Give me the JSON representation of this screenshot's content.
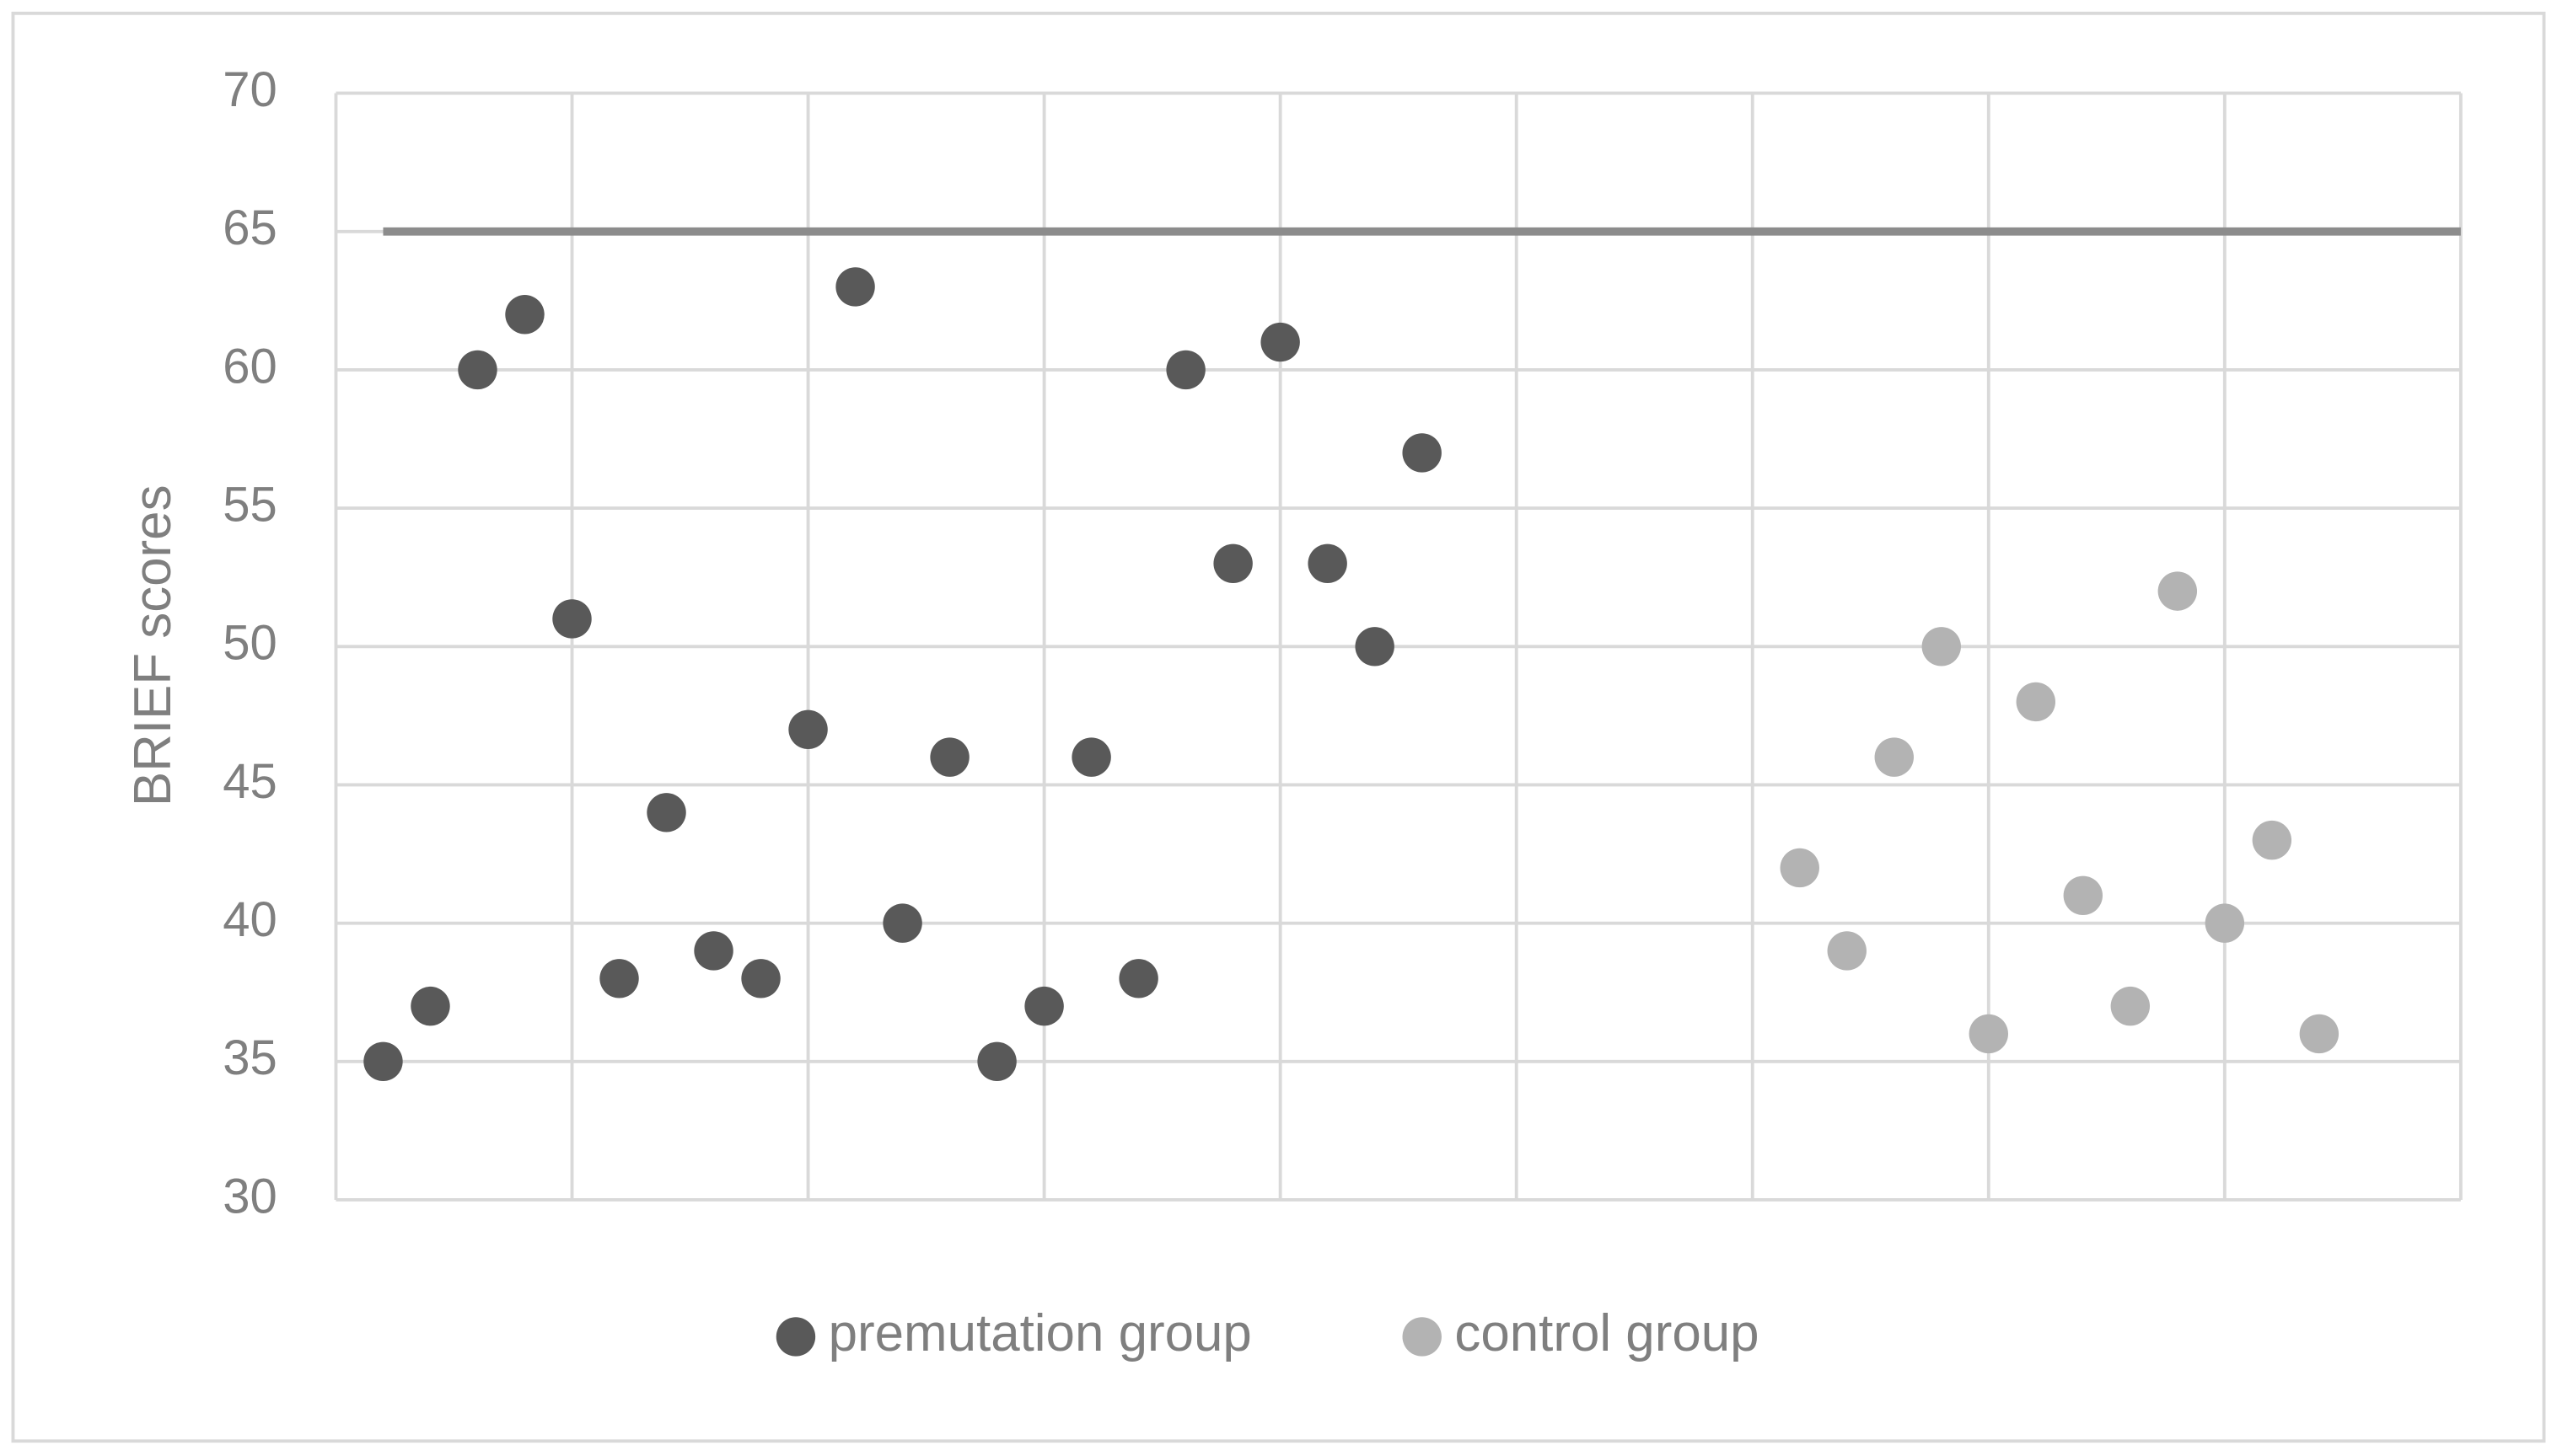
{
  "chart_data": {
    "type": "scatter",
    "y_label": "BRIEF scores",
    "series": [
      {
        "name": "premutation group",
        "color": "#595959",
        "x": [
          0.2,
          0.4,
          0.6,
          0.8,
          1.0,
          1.2,
          1.4,
          1.6,
          1.8,
          2.0,
          2.2,
          2.4,
          2.6,
          2.8,
          3.0,
          3.2,
          3.4,
          3.6,
          3.8,
          4.0,
          4.2,
          4.4,
          4.6
        ],
        "values": [
          35,
          37,
          60,
          62,
          51,
          38,
          44,
          39,
          38,
          47,
          63,
          40,
          46,
          35,
          37,
          46,
          38,
          60,
          53,
          61,
          53,
          50,
          57
        ]
      },
      {
        "name": "control group",
        "color": "#b3b3b3",
        "x": [
          6.2,
          6.4,
          6.6,
          6.8,
          7.0,
          7.2,
          7.4,
          7.6,
          7.8,
          8.0,
          8.2,
          8.4
        ],
        "values": [
          42,
          39,
          46,
          50,
          36,
          48,
          41,
          37,
          52,
          40,
          43,
          36
        ]
      }
    ],
    "reference_line": {
      "y": 65,
      "x": [
        0.2,
        9
      ],
      "color": "#8c8c8c"
    },
    "xlim": [
      0,
      9
    ],
    "xticks": [
      0,
      1,
      2,
      3,
      4,
      5,
      6,
      7,
      8,
      9
    ],
    "ylim": [
      30,
      70
    ],
    "yticks": [
      30,
      35,
      40,
      45,
      50,
      55,
      60,
      65,
      70
    ],
    "grid": true,
    "legend": "bottom"
  }
}
